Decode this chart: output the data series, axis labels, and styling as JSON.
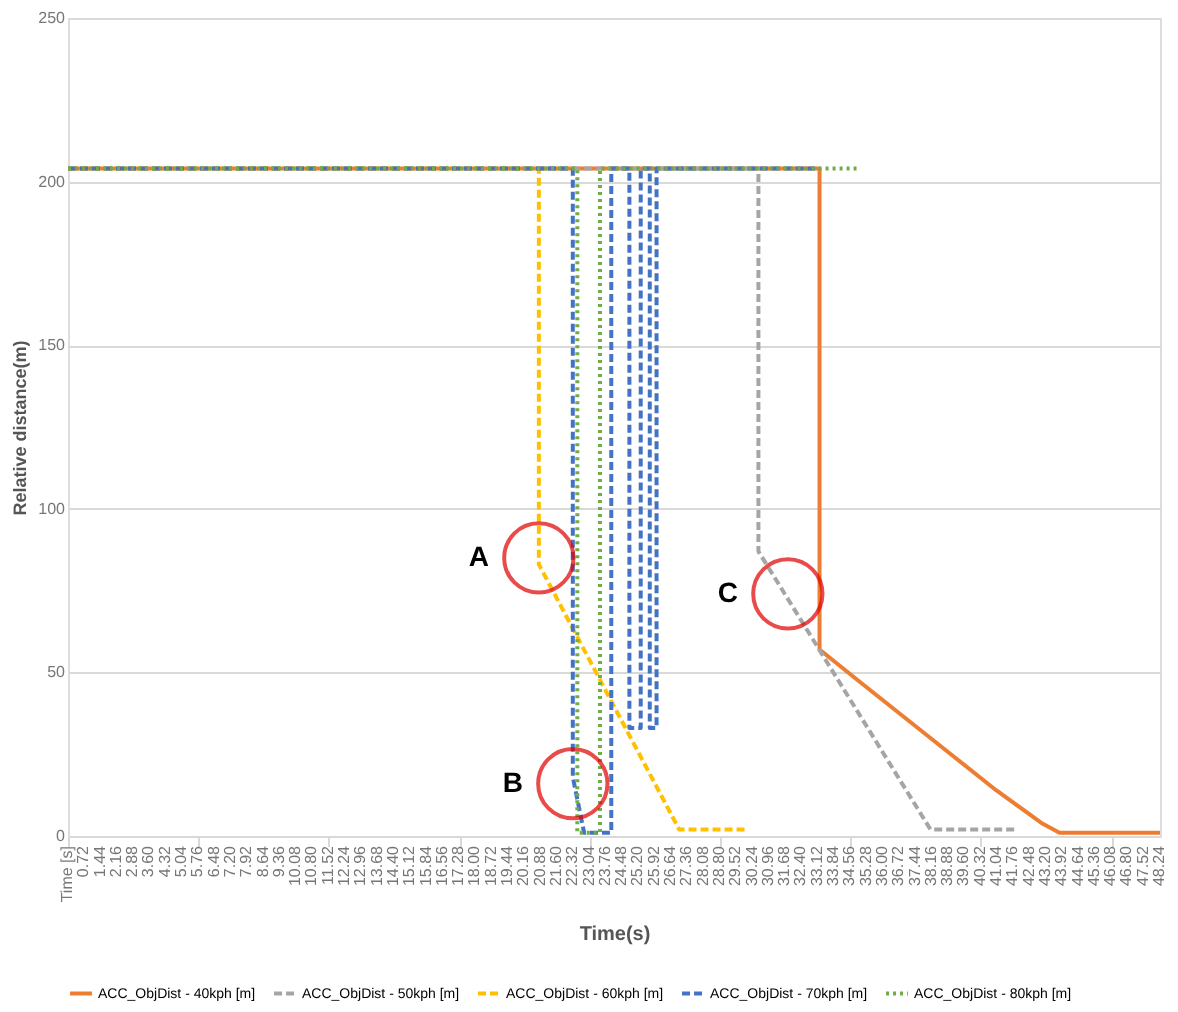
{
  "chart_data": {
    "type": "line",
    "xlabel": "Time(s)",
    "ylabel": "Relative  distance(m)",
    "xlim": [
      0,
      48.24
    ],
    "ylim": [
      0,
      250
    ],
    "yticks": [
      0,
      50,
      100,
      150,
      200,
      250
    ],
    "xticks": [
      {
        "value": 0,
        "label": "Time [s]"
      },
      0.72,
      1.44,
      2.16,
      2.88,
      {
        "value": 3.6,
        "label": "3.60"
      },
      4.32,
      5.04,
      5.76,
      6.48,
      {
        "value": 7.2,
        "label": "7.20"
      },
      7.92,
      8.64,
      9.36,
      10.08,
      {
        "value": 10.8,
        "label": "10.80"
      },
      11.52,
      12.24,
      12.96,
      13.68,
      {
        "value": 14.4,
        "label": "14.40"
      },
      15.12,
      15.84,
      16.56,
      17.28,
      {
        "value": 18,
        "label": "18.00"
      },
      18.72,
      19.44,
      20.16,
      20.88,
      {
        "value": 21.6,
        "label": "21.60"
      },
      22.32,
      23.04,
      23.76,
      24.48,
      {
        "value": 25.2,
        "label": "25.20"
      },
      25.92,
      26.64,
      27.36,
      28.08,
      {
        "value": 28.8,
        "label": "28.80"
      },
      29.52,
      30.24,
      30.96,
      31.68,
      {
        "value": 32.4,
        "label": "32.40"
      },
      33.12,
      33.84,
      34.56,
      35.28,
      {
        "value": 36,
        "label": "36.00"
      },
      36.72,
      37.44,
      38.16,
      38.88,
      {
        "value": 39.6,
        "label": "39.60"
      },
      40.32,
      41.04,
      41.76,
      42.48,
      {
        "value": 43.2,
        "label": "43.20"
      },
      43.92,
      44.64,
      45.36,
      46.08,
      {
        "value": 46.8,
        "label": "46.80"
      },
      47.52,
      48.24
    ],
    "grid": "y",
    "legend": "bottom",
    "marker": "none",
    "series": [
      {
        "name": "ACC_ObjDist - 40kph  [m]",
        "color": "#ed7d31",
        "line_style": "solid",
        "x": [
          0,
          33.2,
          33.2,
          35,
          37,
          39,
          41,
          43,
          43.8,
          48.24
        ],
        "values": [
          204,
          204,
          57,
          47,
          36,
          25,
          14,
          4,
          1,
          1
        ]
      },
      {
        "name": "ACC_ObjDist - 50kph  [m]",
        "color": "#a5a5a5",
        "line_style": "dashed",
        "x": [
          0,
          30.5,
          30.5,
          38.1,
          41.8
        ],
        "values": [
          204,
          204,
          87,
          2,
          2
        ]
      },
      {
        "name": "ACC_ObjDist - 60kph  [m]",
        "color": "#ffc000",
        "line_style": "dashed",
        "x": [
          0,
          20.8,
          20.8,
          27.0,
          30.0
        ],
        "values": [
          204,
          204,
          83,
          2,
          2
        ]
      },
      {
        "name": "ACC_ObjDist - 70kph  [m]",
        "color": "#4472c4",
        "line_style": "dashed",
        "x": [
          0,
          22.3,
          22.3,
          22.8,
          24.0,
          24.0,
          24.8,
          24.8,
          25.3,
          25.3,
          25.7,
          25.7,
          26.0,
          26.0,
          33.0
        ],
        "values": [
          204,
          204,
          18,
          1,
          1,
          204,
          204,
          33,
          33,
          204,
          204,
          33,
          33,
          204,
          204
        ]
      },
      {
        "name": "ACC_ObjDist - 80kph  [m]",
        "color": "#70ad47",
        "line_style": "dotted",
        "x": [
          0,
          22.5,
          22.5,
          23.5,
          23.5,
          35.0
        ],
        "values": [
          204,
          204,
          1,
          1,
          204,
          204
        ]
      }
    ],
    "annotations": [
      {
        "text": "A",
        "x": 20.8,
        "y": 85
      },
      {
        "text": "B",
        "x": 22.3,
        "y": 16
      },
      {
        "text": "C",
        "x": 31.8,
        "y": 74
      }
    ]
  }
}
